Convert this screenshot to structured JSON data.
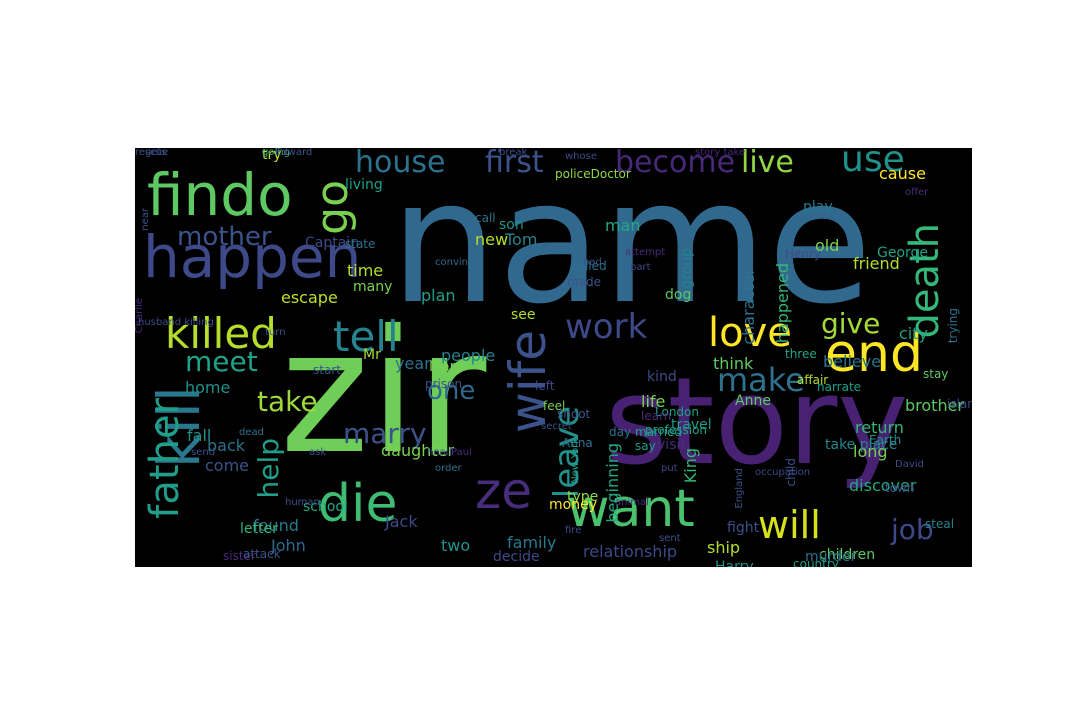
{
  "palette": {
    "background": "#000000",
    "viridis": [
      "#440154",
      "#482878",
      "#3e4989",
      "#31688e",
      "#26828e",
      "#1f9e89",
      "#35b779",
      "#6ece58",
      "#b5de2b",
      "#fde725"
    ]
  },
  "words": [
    {
      "text": "name",
      "color": "#31688e"
    },
    {
      "text": "zir",
      "color": "#6ece58"
    },
    {
      "text": "story",
      "color": "#482173"
    },
    {
      "text": "findo",
      "color": "#5ec962"
    },
    {
      "text": "happen",
      "color": "#3e4989"
    },
    {
      "text": "go",
      "color": "#7ad151"
    },
    {
      "text": "killed",
      "color": "#b5de2b"
    },
    {
      "text": "tell",
      "color": "#26828e"
    },
    {
      "text": "kill",
      "color": "#2a788e"
    },
    {
      "text": "father",
      "color": "#1f9e89"
    },
    {
      "text": "die",
      "color": "#3fbc73"
    },
    {
      "text": "want",
      "color": "#4ac16d"
    },
    {
      "text": "ze",
      "color": "#472d7b"
    },
    {
      "text": "wife",
      "color": "#3b528b"
    },
    {
      "text": "end",
      "color": "#fde725"
    },
    {
      "text": "love",
      "color": "#fde725"
    },
    {
      "text": "work",
      "color": "#3e4989"
    },
    {
      "text": "death",
      "color": "#35b779"
    },
    {
      "text": "will",
      "color": "#d8e219"
    },
    {
      "text": "first",
      "color": "#3b528b"
    },
    {
      "text": "become",
      "color": "#482878"
    },
    {
      "text": "house",
      "color": "#2c728e"
    },
    {
      "text": "live",
      "color": "#90d743"
    },
    {
      "text": "use",
      "color": "#21918c"
    },
    {
      "text": "mother",
      "color": "#3b528b"
    },
    {
      "text": "make",
      "color": "#2c728e"
    },
    {
      "text": "give",
      "color": "#a5db36"
    },
    {
      "text": "meet",
      "color": "#1fa187"
    },
    {
      "text": "take",
      "color": "#9fda3a"
    },
    {
      "text": "marry",
      "color": "#3b528b"
    },
    {
      "text": "one",
      "color": "#31688e"
    },
    {
      "text": "leave",
      "color": "#21918c"
    },
    {
      "text": "help",
      "color": "#1f9e89"
    },
    {
      "text": "job",
      "color": "#3e4989"
    },
    {
      "text": "friend",
      "color": "#b5de2b"
    },
    {
      "text": "city",
      "color": "#1fa187"
    },
    {
      "text": "escape",
      "color": "#c2df23"
    },
    {
      "text": "Mr",
      "color": "#a5db36"
    },
    {
      "text": "plan",
      "color": "#1f9e89"
    },
    {
      "text": "people",
      "color": "#26828e"
    },
    {
      "text": "group",
      "color": "#26828e"
    },
    {
      "text": "character",
      "color": "#2c728e"
    },
    {
      "text": "happened",
      "color": "#35b779"
    },
    {
      "text": "old",
      "color": "#7ad151"
    },
    {
      "text": "believe",
      "color": "#2c728e"
    },
    {
      "text": "brother",
      "color": "#5ec962"
    },
    {
      "text": "return",
      "color": "#35b779"
    },
    {
      "text": "long",
      "color": "#7ad151"
    },
    {
      "text": "discover",
      "color": "#22a884"
    },
    {
      "text": "children",
      "color": "#5ec962"
    },
    {
      "text": "ship",
      "color": "#b5de2b"
    },
    {
      "text": "relationship",
      "color": "#3e4989"
    },
    {
      "text": "family",
      "color": "#2a788e"
    },
    {
      "text": "two",
      "color": "#21918c"
    },
    {
      "text": "decide",
      "color": "#3e4989"
    },
    {
      "text": "John",
      "color": "#31688e"
    },
    {
      "text": "found",
      "color": "#2a788e"
    },
    {
      "text": "Jack",
      "color": "#3e4989"
    },
    {
      "text": "daughter",
      "color": "#7ad151"
    },
    {
      "text": "fall",
      "color": "#21918c"
    },
    {
      "text": "come",
      "color": "#3b528b"
    },
    {
      "text": "back",
      "color": "#2c728e"
    },
    {
      "text": "home",
      "color": "#21918c"
    },
    {
      "text": "time",
      "color": "#b5de2b"
    },
    {
      "text": "many",
      "color": "#7ad151"
    },
    {
      "text": "year",
      "color": "#2c728e"
    },
    {
      "text": "Mary",
      "color": "#7ad151"
    },
    {
      "text": "new",
      "color": "#b5de2b"
    },
    {
      "text": "son",
      "color": "#21918c"
    },
    {
      "text": "man",
      "color": "#22a884"
    },
    {
      "text": "Tom",
      "color": "#26828e"
    },
    {
      "text": "think",
      "color": "#5ec962"
    },
    {
      "text": "kind",
      "color": "#3e4989"
    },
    {
      "text": "life",
      "color": "#7ad151"
    },
    {
      "text": "type",
      "color": "#90d743"
    },
    {
      "text": "beginning",
      "color": "#22a884"
    },
    {
      "text": "try",
      "color": "#c2df23"
    },
    {
      "text": "living",
      "color": "#1fa187"
    },
    {
      "text": "cause",
      "color": "#fde725"
    },
    {
      "text": "see",
      "color": "#b5de2b"
    },
    {
      "text": "King",
      "color": "#35b779"
    },
    {
      "text": "money",
      "color": "#fde725"
    },
    {
      "text": "fight",
      "color": "#3b528b"
    },
    {
      "text": "Harry",
      "color": "#21918c"
    },
    {
      "text": "murder",
      "color": "#2c728e"
    },
    {
      "text": "going",
      "color": "#35b779"
    },
    {
      "text": "policeDoctor",
      "color": "#90d743"
    },
    {
      "text": "play",
      "color": "#2a788e"
    },
    {
      "text": "Anne",
      "color": "#5ec962"
    },
    {
      "text": "George",
      "color": "#1fa187"
    },
    {
      "text": "Henry",
      "color": "#3e4989"
    },
    {
      "text": "travel",
      "color": "#1f9e89"
    },
    {
      "text": "visit",
      "color": "#472d7b"
    },
    {
      "text": "school",
      "color": "#22a884"
    },
    {
      "text": "letter",
      "color": "#35b779"
    },
    {
      "text": "sister",
      "color": "#482878"
    },
    {
      "text": "attack",
      "color": "#3b528b"
    },
    {
      "text": "Captain",
      "color": "#3e4989"
    },
    {
      "text": "state",
      "color": "#2c728e"
    },
    {
      "text": "convince",
      "color": "#31688e"
    },
    {
      "text": "call",
      "color": "#2c728e"
    },
    {
      "text": "called",
      "color": "#2c728e"
    },
    {
      "text": "made",
      "color": "#3b528b"
    },
    {
      "text": "dog",
      "color": "#5ec962"
    },
    {
      "text": "left",
      "color": "#3e4989"
    },
    {
      "text": "feel",
      "color": "#7ad151"
    },
    {
      "text": "shoot",
      "color": "#3b528b"
    },
    {
      "text": "London",
      "color": "#1fa187"
    },
    {
      "text": "three",
      "color": "#22a884"
    },
    {
      "text": "affair",
      "color": "#b5de2b"
    },
    {
      "text": "narrate",
      "color": "#1f9e89"
    },
    {
      "text": "take place",
      "color": "#26828e"
    },
    {
      "text": "prison",
      "color": "#3b528b"
    },
    {
      "text": "secret",
      "color": "#3b528b"
    },
    {
      "text": "Anna",
      "color": "#2c728e"
    },
    {
      "text": "learn",
      "color": "#472d7b"
    },
    {
      "text": "profession",
      "color": "#1fa187"
    },
    {
      "text": "married",
      "color": "#1f9e89"
    },
    {
      "text": "day",
      "color": "#2c728e"
    },
    {
      "text": "Earth",
      "color": "#21918c"
    },
    {
      "text": "say",
      "color": "#1f9e89"
    },
    {
      "text": "child",
      "color": "#3b528b"
    },
    {
      "text": "David",
      "color": "#3e4989"
    },
    {
      "text": "town",
      "color": "#3b528b"
    },
    {
      "text": "steal",
      "color": "#26828e"
    },
    {
      "text": "island",
      "color": "#3e4989"
    },
    {
      "text": "country",
      "color": "#1f9e89"
    },
    {
      "text": "stay",
      "color": "#5ec962"
    },
    {
      "text": "trying",
      "color": "#2c728e"
    },
    {
      "text": "story take",
      "color": "#482878"
    },
    {
      "text": "break",
      "color": "#3b528b"
    },
    {
      "text": "whose",
      "color": "#3e4989"
    },
    {
      "text": "gets",
      "color": "#3e4989"
    },
    {
      "text": "Edward",
      "color": "#3b528b"
    },
    {
      "text": "dead",
      "color": "#2c728e"
    },
    {
      "text": "start",
      "color": "#3b528b"
    },
    {
      "text": "Charlie",
      "color": "#482878"
    },
    {
      "text": "husband killing",
      "color": "#3e4989"
    },
    {
      "text": "turn",
      "color": "#3b528b"
    },
    {
      "text": "Paul",
      "color": "#472d7b"
    },
    {
      "text": "order",
      "color": "#2c728e"
    },
    {
      "text": "send",
      "color": "#3b528b"
    },
    {
      "text": "human",
      "color": "#3b528b"
    },
    {
      "text": "animal",
      "color": "#472d7b"
    },
    {
      "text": "fire",
      "color": "#3e4989"
    },
    {
      "text": "sent",
      "color": "#3b528b"
    },
    {
      "text": "offer",
      "color": "#472d7b"
    },
    {
      "text": "put",
      "color": "#3e4989"
    },
    {
      "text": "New York",
      "color": "#1fa187"
    },
    {
      "text": "England",
      "color": "#3b528b"
    },
    {
      "text": "occupation",
      "color": "#3e4989"
    },
    {
      "text": "attempt",
      "color": "#472d7b"
    },
    {
      "text": "part",
      "color": "#3e4989"
    },
    {
      "text": "head",
      "color": "#3b528b"
    },
    {
      "text": "ask",
      "color": "#3b528b"
    },
    {
      "text": "bad",
      "color": "#3b528b"
    },
    {
      "text": "near",
      "color": "#3b528b"
    },
    {
      "text": "rescue",
      "color": "#3b528b"
    }
  ]
}
